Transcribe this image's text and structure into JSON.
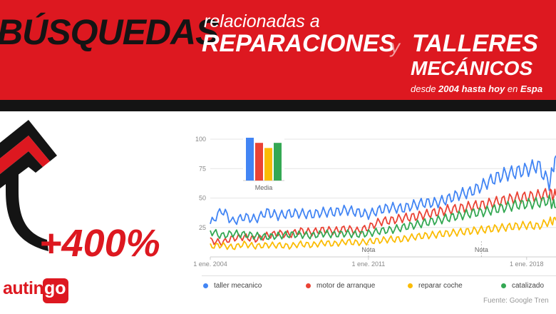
{
  "header": {
    "title_main": "BÚSQUEDAS",
    "title_rel": "relacionadas a",
    "title_rep": "REPARACIONES",
    "title_y": "y",
    "title_tal": "TALLERES",
    "title_mec": "MECÁNICOS",
    "sub_prefix": "desde",
    "sub_years": "2004 hasta hoy",
    "sub_en": "en",
    "sub_country": "Espa"
  },
  "highlight": "+400%",
  "logo": {
    "text": "autin",
    "box": "go"
  },
  "source": "Fuente: Google Tren",
  "colors": {
    "red": "#dd1820",
    "dark": "#141414",
    "blue": "#4285f4",
    "orange": "#ea4335",
    "yellow": "#fbbc05",
    "green": "#34a853"
  },
  "chart_data": {
    "type": "line",
    "ylim": [
      0,
      100
    ],
    "yticks": [
      "100",
      "75",
      "50",
      "25"
    ],
    "xlim": [
      2004,
      2019.3
    ],
    "xticks": [
      {
        "label": "1 ene. 2004",
        "value": 2004
      },
      {
        "label": "1 ene. 2011",
        "value": 2011
      },
      {
        "label": "1 ene. 2018",
        "value": 2018
      }
    ],
    "notes": [
      {
        "label": "Nota",
        "value": 2011
      },
      {
        "label": "Nota",
        "value": 2016
      }
    ],
    "x": [
      2004,
      2004.5,
      2005,
      2005.5,
      2006,
      2006.5,
      2007,
      2007.5,
      2008,
      2008.5,
      2009,
      2009.5,
      2010,
      2010.5,
      2011,
      2011.5,
      2012,
      2012.5,
      2013,
      2013.5,
      2014,
      2014.5,
      2015,
      2015.5,
      2016,
      2016.5,
      2017,
      2017.5,
      2018,
      2018.5,
      2019,
      2019.3
    ],
    "series": [
      {
        "name": "taller mecanico",
        "color": "#4285f4",
        "values": [
          28,
          40,
          30,
          34,
          32,
          38,
          35,
          37,
          37,
          36,
          38,
          38,
          40,
          38,
          36,
          40,
          42,
          41,
          44,
          46,
          46,
          49,
          53,
          55,
          60,
          66,
          70,
          72,
          74,
          78,
          62,
          86
        ]
      },
      {
        "name": "motor de arranque",
        "color": "#ea4335",
        "values": [
          14,
          12,
          16,
          17,
          15,
          18,
          20,
          19,
          22,
          21,
          23,
          22,
          24,
          22,
          25,
          30,
          31,
          33,
          34,
          36,
          38,
          40,
          41,
          43,
          44,
          46,
          48,
          50,
          51,
          52,
          54,
          52
        ]
      },
      {
        "name": "reparar coche",
        "color": "#fbbc05",
        "values": [
          9,
          10,
          8,
          11,
          9,
          10,
          10,
          9,
          11,
          10,
          12,
          11,
          13,
          12,
          13,
          14,
          15,
          15,
          17,
          18,
          19,
          20,
          21,
          22,
          23,
          24,
          25,
          26,
          27,
          26,
          30,
          31
        ]
      },
      {
        "name": "catalizador",
        "color": "#34a853",
        "values": [
          22,
          18,
          20,
          19,
          18,
          17,
          18,
          19,
          19,
          18,
          20,
          19,
          20,
          19,
          20,
          22,
          23,
          25,
          27,
          29,
          31,
          33,
          35,
          37,
          38,
          40,
          42,
          44,
          45,
          46,
          48,
          42
        ]
      }
    ],
    "averages": {
      "label": "Media",
      "values": [
        100,
        88,
        76,
        88
      ]
    },
    "legend": [
      {
        "label": "taller mecanico",
        "color": "#4285f4"
      },
      {
        "label": "motor de arranque",
        "color": "#ea4335"
      },
      {
        "label": "reparar coche",
        "color": "#fbbc05"
      },
      {
        "label": "catalizado",
        "color": "#34a853"
      }
    ]
  }
}
